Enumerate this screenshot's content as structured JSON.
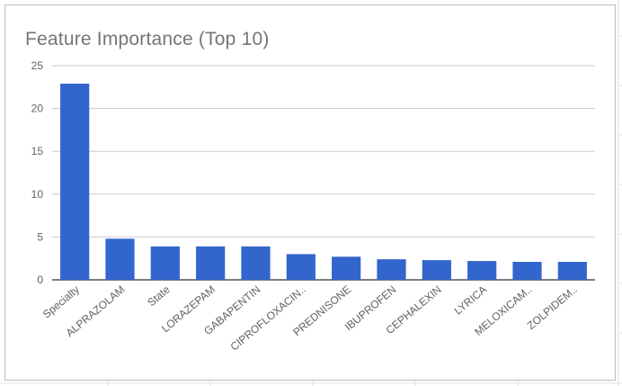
{
  "chart_data": {
    "type": "bar",
    "title": "Feature Importance (Top 10)",
    "categories": [
      "Specialty",
      "ALPRAZOLAM",
      "State",
      "LORAZEPAM",
      "GABAPENTIN",
      "CIPROFLOXACIN..",
      "PREDNISONE",
      "IBUPROFEN",
      "CEPHALEXIN",
      "LYRICA",
      "MELOXICAM..",
      "ZOLPIDEM.."
    ],
    "values": [
      22.9,
      4.8,
      3.9,
      3.9,
      3.9,
      3.0,
      2.7,
      2.4,
      2.3,
      2.2,
      2.1,
      2.1
    ],
    "ylim": [
      0,
      25
    ],
    "yticks": [
      0,
      5,
      10,
      15,
      20,
      25
    ],
    "bar_color": "#3366cc",
    "grid": true
  }
}
